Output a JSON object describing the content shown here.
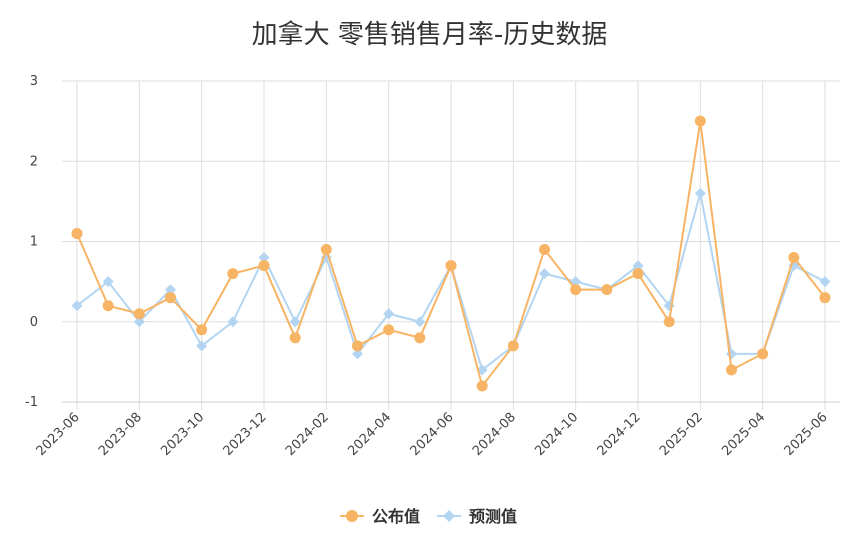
{
  "chart_data": {
    "type": "line",
    "title": "加拿大 零售销售月率-历史数据",
    "x": [
      "2023-06",
      "2023-07",
      "2023-08",
      "2023-09",
      "2023-10",
      "2023-11",
      "2023-12",
      "2024-01",
      "2024-02",
      "2024-03",
      "2024-04",
      "2024-05",
      "2024-06",
      "2024-07",
      "2024-08",
      "2024-09",
      "2024-10",
      "2024-11",
      "2024-12",
      "2025-01",
      "2025-02",
      "2025-03",
      "2025-04",
      "2025-05",
      "2025-06"
    ],
    "x_tick_labels": [
      "2023-06",
      "2023-08",
      "2023-10",
      "2023-12",
      "2024-02",
      "2024-04",
      "2024-06",
      "2024-08",
      "2024-10",
      "2024-12",
      "2025-02",
      "2025-04",
      "2025-06"
    ],
    "yticks": [
      3,
      2,
      1,
      0,
      -1
    ],
    "ylim": [
      -1,
      3
    ],
    "grid": true,
    "legend_position": "bottom",
    "series": [
      {
        "name": "公布值",
        "color": "#f7b464",
        "marker": "circle",
        "values": [
          1.1,
          0.2,
          0.1,
          0.3,
          -0.1,
          0.6,
          0.7,
          -0.2,
          0.9,
          -0.3,
          -0.1,
          -0.2,
          0.7,
          -0.8,
          -0.3,
          0.9,
          0.4,
          0.4,
          0.6,
          0.0,
          2.5,
          -0.6,
          -0.4,
          0.8,
          0.3
        ]
      },
      {
        "name": "预测值",
        "color": "#b3d5f2",
        "marker": "diamond",
        "values": [
          0.2,
          0.5,
          0.0,
          0.4,
          -0.3,
          0.0,
          0.8,
          0.0,
          0.8,
          -0.4,
          0.1,
          0.0,
          0.7,
          -0.6,
          -0.3,
          0.6,
          0.5,
          0.4,
          0.7,
          0.2,
          1.6,
          -0.4,
          -0.4,
          0.7,
          0.5
        ]
      }
    ]
  }
}
